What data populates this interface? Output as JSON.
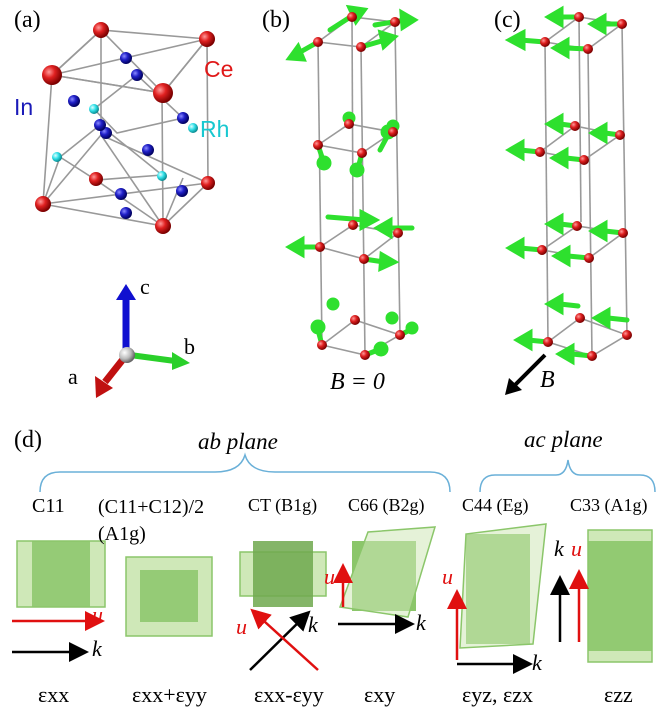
{
  "panels": {
    "a": "(a)",
    "b": "(b)",
    "c": "(c)",
    "d": "(d)"
  },
  "elements": {
    "ce": "Ce",
    "in": "In",
    "rh": "Rh"
  },
  "axes": {
    "c": "c",
    "b": "b",
    "a": "a"
  },
  "field": {
    "b_zero": "B = 0",
    "b_label": "B"
  },
  "groups": {
    "ab_plane": "ab plane",
    "ac_plane": "ac plane"
  },
  "modes": [
    {
      "name": "C11",
      "strain": "εxx"
    },
    {
      "name": "(C11+C12)/2 (A1g)",
      "strain": "εxx+εyy"
    },
    {
      "name": "CT (B1g)",
      "strain": "εxx-εyy"
    },
    {
      "name": "C66 (B2g)",
      "strain": "εxy"
    },
    {
      "name": "C44 (Eg)",
      "strain": "εyz, εzx"
    },
    {
      "name": "C33 (A1g)",
      "strain": "εzz"
    }
  ],
  "vectors": {
    "u": "u",
    "k": "k"
  },
  "colors": {
    "ce_atom": "#d81c1c",
    "in_atom": "#1a1ab8",
    "rh_atom": "#20d8e0",
    "spin_arrow": "#2ee02e",
    "strain_fill": "#8bc66a",
    "strain_light": "#cfe8b8",
    "bracket": "#6ab0d8",
    "u_arrow": "#e01010"
  }
}
